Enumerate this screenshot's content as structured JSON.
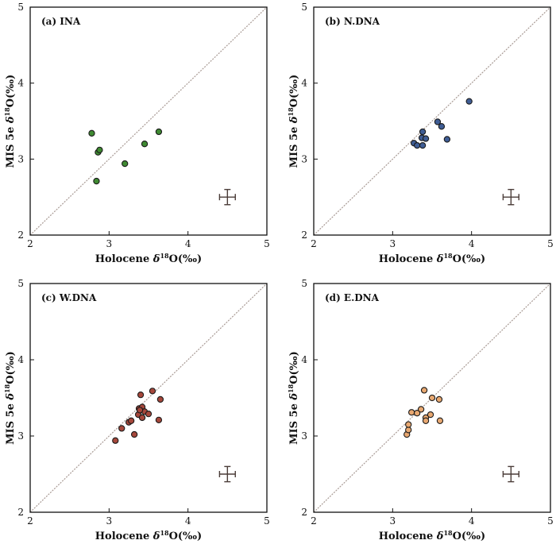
{
  "chart_data": [
    {
      "type": "scatter",
      "title": "(a) INA",
      "xlabel": "Holocene δ18O(‰)",
      "ylabel": "MIS 5e δ18O(‰)",
      "xlim": [
        2,
        5
      ],
      "ylim": [
        2,
        5
      ],
      "xticks": [
        "2",
        "3",
        "4",
        "5"
      ],
      "yticks": [
        "2",
        "3",
        "4",
        "5"
      ],
      "point_color": "#3f8a32",
      "x": [
        2.78,
        2.86,
        2.88,
        2.84,
        3.2,
        3.45,
        3.63
      ],
      "y": [
        3.34,
        3.09,
        3.12,
        2.71,
        2.94,
        3.2,
        3.36
      ],
      "error_bar": {
        "x": 4.5,
        "y": 2.5,
        "xerr": 0.1,
        "yerr": 0.1
      },
      "reference_line": "1:1"
    },
    {
      "type": "scatter",
      "title": "(b) N.DNA",
      "xlabel": "Holocene δ18O(‰)",
      "ylabel": "MIS 5e δ18O(‰)",
      "xlim": [
        2,
        5
      ],
      "ylim": [
        2,
        5
      ],
      "xticks": [
        "2",
        "3",
        "4",
        "5"
      ],
      "yticks": [
        "2",
        "3",
        "4",
        "5"
      ],
      "point_color": "#3f5d95",
      "x": [
        3.27,
        3.31,
        3.37,
        3.38,
        3.38,
        3.42,
        3.57,
        3.62,
        3.69,
        3.97
      ],
      "y": [
        3.21,
        3.18,
        3.28,
        3.36,
        3.18,
        3.27,
        3.49,
        3.43,
        3.26,
        3.76
      ],
      "error_bar": {
        "x": 4.5,
        "y": 2.5,
        "xerr": 0.1,
        "yerr": 0.1
      },
      "reference_line": "1:1"
    },
    {
      "type": "scatter",
      "title": "(c) W.DNA",
      "xlabel": "Holocene δ18O(‰)",
      "ylabel": "MIS 5e δ18O(‰)",
      "xlim": [
        2,
        5
      ],
      "ylim": [
        2,
        5
      ],
      "xticks": [
        "2",
        "3",
        "4",
        "5"
      ],
      "yticks": [
        "2",
        "3",
        "4",
        "5"
      ],
      "point_color": "#a6473b",
      "x": [
        3.08,
        3.16,
        3.25,
        3.28,
        3.32,
        3.37,
        3.38,
        3.4,
        3.42,
        3.42,
        3.45,
        3.5,
        3.55,
        3.63,
        3.65,
        3.39
      ],
      "y": [
        2.94,
        3.1,
        3.18,
        3.2,
        3.02,
        3.28,
        3.36,
        3.54,
        3.38,
        3.24,
        3.32,
        3.29,
        3.59,
        3.21,
        3.48,
        3.34
      ],
      "error_bar": {
        "x": 4.5,
        "y": 2.5,
        "xerr": 0.1,
        "yerr": 0.1
      },
      "reference_line": "1:1"
    },
    {
      "type": "scatter",
      "title": "(d) E.DNA",
      "xlabel": "Holocene δ18O(‰)",
      "ylabel": "MIS 5e δ18O(‰)",
      "xlim": [
        2,
        5
      ],
      "ylim": [
        2,
        5
      ],
      "xticks": [
        "2",
        "3",
        "4",
        "5"
      ],
      "yticks": [
        "2",
        "3",
        "4",
        "5"
      ],
      "point_color": "#e8a871",
      "x": [
        3.18,
        3.2,
        3.2,
        3.24,
        3.31,
        3.36,
        3.4,
        3.42,
        3.42,
        3.48,
        3.5,
        3.59,
        3.6
      ],
      "y": [
        3.02,
        3.08,
        3.15,
        3.31,
        3.3,
        3.35,
        3.6,
        3.24,
        3.2,
        3.28,
        3.5,
        3.48,
        3.2
      ],
      "error_bar": {
        "x": 4.5,
        "y": 2.5,
        "xerr": 0.1,
        "yerr": 0.1
      },
      "reference_line": "1:1"
    }
  ]
}
